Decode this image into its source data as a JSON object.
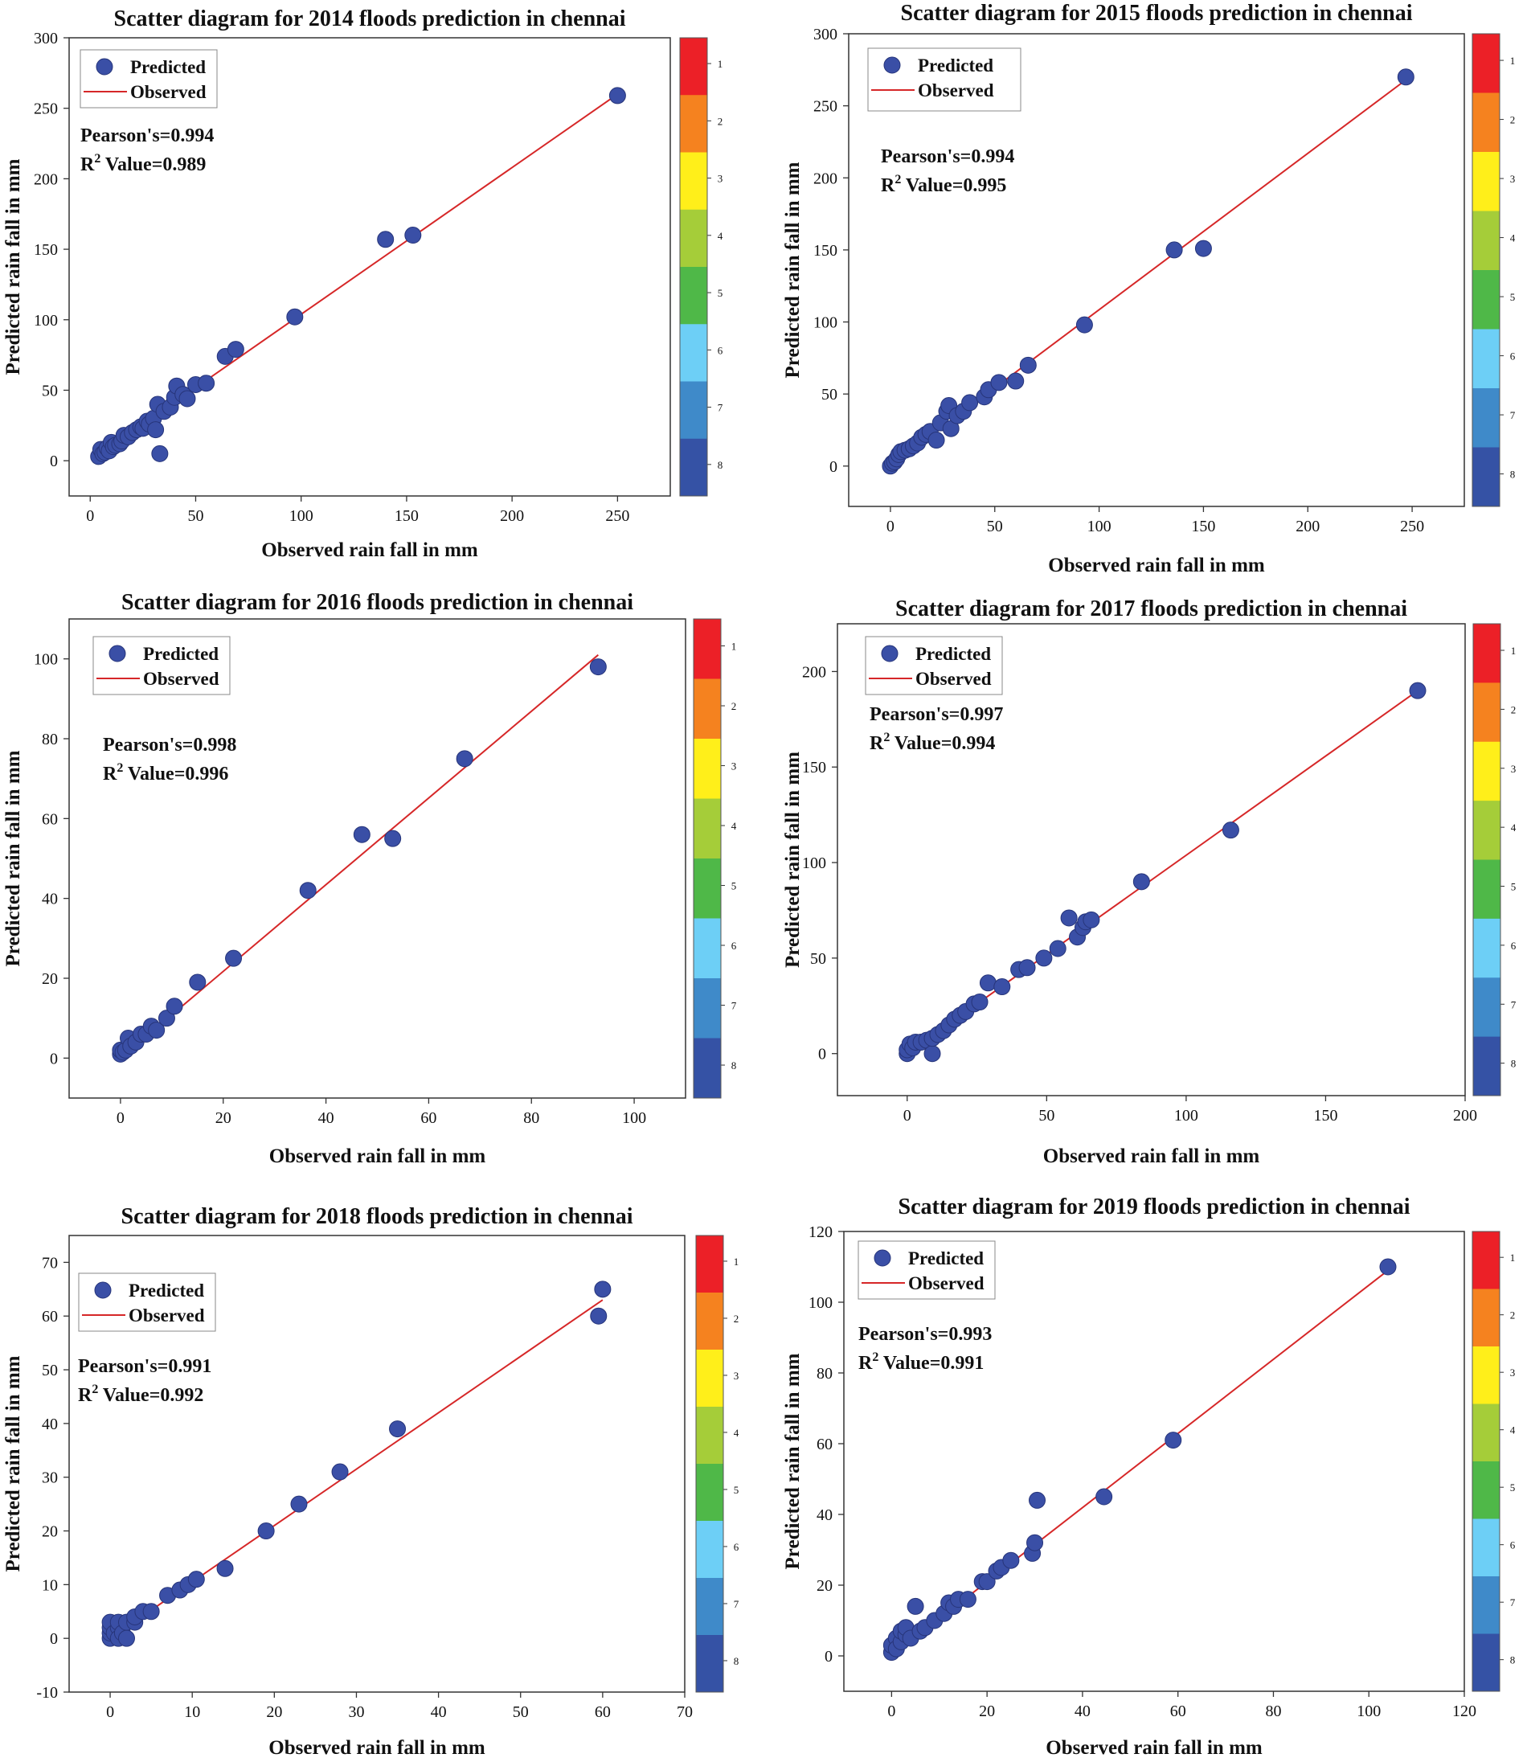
{
  "chart_data": [
    {
      "type": "scatter",
      "title": "Scatter diagram for 2014 floods prediction in chennai",
      "xlabel": "Observed rain fall in mm",
      "ylabel": "Predicted rain fall in mm",
      "xlim": [
        -10,
        275
      ],
      "ylim": [
        -25,
        300
      ],
      "xticks": [
        0,
        50,
        100,
        150,
        200,
        250
      ],
      "yticks": [
        0,
        50,
        100,
        150,
        200,
        250,
        300
      ],
      "legend": {
        "predicted": "Predicted",
        "observed": "Observed",
        "placement": "top-left"
      },
      "pearson": "Pearson's=0.994",
      "r2": {
        "base": "R",
        "sup": "2",
        "rest": " Value=0.989"
      },
      "line": {
        "x": [
          5,
          250
        ],
        "y": [
          5,
          260
        ]
      },
      "points": [
        [
          4,
          3
        ],
        [
          5,
          8
        ],
        [
          6,
          5
        ],
        [
          7,
          6
        ],
        [
          8,
          9
        ],
        [
          9,
          7
        ],
        [
          10,
          13
        ],
        [
          11,
          10
        ],
        [
          12,
          11
        ],
        [
          14,
          12
        ],
        [
          15,
          14
        ],
        [
          16,
          18
        ],
        [
          18,
          17
        ],
        [
          20,
          20
        ],
        [
          22,
          22
        ],
        [
          24,
          24
        ],
        [
          25,
          23
        ],
        [
          27,
          28
        ],
        [
          28,
          26
        ],
        [
          30,
          30
        ],
        [
          31,
          22
        ],
        [
          32,
          40
        ],
        [
          33,
          5
        ],
        [
          35,
          35
        ],
        [
          38,
          38
        ],
        [
          40,
          45
        ],
        [
          41,
          53
        ],
        [
          44,
          47
        ],
        [
          46,
          44
        ],
        [
          50,
          54
        ],
        [
          55,
          55
        ],
        [
          64,
          74
        ],
        [
          69,
          79
        ],
        [
          97,
          102
        ],
        [
          140,
          157
        ],
        [
          153,
          160
        ],
        [
          250,
          259
        ]
      ],
      "colorbar": {
        "labels": [
          "1",
          "2",
          "3",
          "4",
          "5",
          "6",
          "7",
          "8"
        ],
        "colors": [
          "#ec2027",
          "#f5821f",
          "#ffef1a",
          "#a5cd39",
          "#4fb848",
          "#6dcff6",
          "#3f8ac9",
          "#3552a5"
        ]
      }
    },
    {
      "type": "scatter",
      "title": "Scatter diagram for 2015 floods prediction in chennai",
      "xlabel": "Observed rain fall in mm",
      "ylabel": "Predicted rain fall in mm",
      "xlim": [
        -20,
        275
      ],
      "ylim": [
        -28,
        300
      ],
      "xticks": [
        0,
        50,
        100,
        150,
        200,
        250
      ],
      "yticks": [
        0,
        50,
        100,
        150,
        200,
        250,
        300
      ],
      "legend": {
        "predicted": "Predicted",
        "observed": "Observed",
        "placement": "top-left"
      },
      "pearson": "Pearson's=0.994",
      "r2": {
        "base": "R",
        "sup": "2",
        "rest": " Value=0.995"
      },
      "line": {
        "x": [
          0,
          247
        ],
        "y": [
          0,
          268
        ]
      },
      "points": [
        [
          0,
          0
        ],
        [
          1,
          2
        ],
        [
          2,
          3
        ],
        [
          3,
          5
        ],
        [
          4,
          8
        ],
        [
          5,
          10
        ],
        [
          7,
          11
        ],
        [
          9,
          12
        ],
        [
          11,
          14
        ],
        [
          13,
          16
        ],
        [
          15,
          20
        ],
        [
          17,
          22
        ],
        [
          19,
          24
        ],
        [
          22,
          18
        ],
        [
          24,
          30
        ],
        [
          27,
          38
        ],
        [
          28,
          42
        ],
        [
          29,
          26
        ],
        [
          32,
          35
        ],
        [
          35,
          38
        ],
        [
          38,
          44
        ],
        [
          45,
          48
        ],
        [
          47,
          53
        ],
        [
          52,
          58
        ],
        [
          60,
          59
        ],
        [
          66,
          70
        ],
        [
          93,
          98
        ],
        [
          136,
          150
        ],
        [
          150,
          151
        ],
        [
          247,
          270
        ]
      ],
      "colorbar": {
        "labels": [
          "1",
          "2",
          "3",
          "4",
          "5",
          "6",
          "7",
          "8"
        ],
        "colors": [
          "#ec2027",
          "#f5821f",
          "#ffef1a",
          "#a5cd39",
          "#4fb848",
          "#6dcff6",
          "#3f8ac9",
          "#3552a5"
        ]
      }
    },
    {
      "type": "scatter",
      "title": "Scatter diagram for 2016 floods prediction in chennai",
      "xlabel": "Observed rain fall in mm",
      "ylabel": "Predicted rain fall in mm",
      "xlim": [
        -10,
        110
      ],
      "ylim": [
        -10,
        110
      ],
      "xticks": [
        0,
        20,
        40,
        60,
        80,
        100
      ],
      "yticks": [
        0,
        20,
        40,
        60,
        80,
        100
      ],
      "legend": {
        "predicted": "Predicted",
        "observed": "Observed",
        "placement": "top-left"
      },
      "pearson": "Pearson's=0.998",
      "r2": {
        "base": "R",
        "sup": "2",
        "rest": " Value=0.996"
      },
      "line": {
        "x": [
          0,
          93
        ],
        "y": [
          0,
          101
        ]
      },
      "points": [
        [
          0,
          1
        ],
        [
          0,
          2
        ],
        [
          0.5,
          1.5
        ],
        [
          1,
          2
        ],
        [
          1.5,
          5
        ],
        [
          2,
          3
        ],
        [
          3,
          4
        ],
        [
          4,
          6
        ],
        [
          5,
          6
        ],
        [
          6,
          8
        ],
        [
          7,
          7
        ],
        [
          9,
          10
        ],
        [
          10.5,
          13
        ],
        [
          15,
          19
        ],
        [
          22,
          25
        ],
        [
          36.5,
          42
        ],
        [
          47,
          56
        ],
        [
          53,
          55
        ],
        [
          67,
          75
        ],
        [
          93,
          98
        ]
      ],
      "colorbar": {
        "labels": [
          "1",
          "2",
          "3",
          "4",
          "5",
          "6",
          "7",
          "8"
        ],
        "colors": [
          "#ec2027",
          "#f5821f",
          "#ffef1a",
          "#a5cd39",
          "#4fb848",
          "#6dcff6",
          "#3f8ac9",
          "#3552a5"
        ]
      }
    },
    {
      "type": "scatter",
      "title": "Scatter diagram for 2017 floods prediction in chennai",
      "xlabel": "Observed rain fall in mm",
      "ylabel": "Predicted rain fall in mm",
      "xlim": [
        -25,
        200
      ],
      "ylim": [
        -22,
        225
      ],
      "xticks": [
        0,
        50,
        100,
        150,
        200
      ],
      "yticks": [
        0,
        50,
        100,
        150,
        200
      ],
      "legend": {
        "predicted": "Predicted",
        "observed": "Observed",
        "placement": "top-left"
      },
      "pearson": "Pearson's=0.997",
      "r2": {
        "base": "R",
        "sup": "2",
        "rest": " Value=0.994"
      },
      "line": {
        "x": [
          0,
          183
        ],
        "y": [
          0,
          190
        ]
      },
      "points": [
        [
          0,
          0
        ],
        [
          0,
          2
        ],
        [
          1,
          5
        ],
        [
          2,
          3
        ],
        [
          3,
          6
        ],
        [
          5,
          6
        ],
        [
          7,
          7
        ],
        [
          9,
          0
        ],
        [
          9,
          8
        ],
        [
          11,
          10
        ],
        [
          13,
          12
        ],
        [
          15,
          15
        ],
        [
          17,
          18
        ],
        [
          19,
          20
        ],
        [
          21,
          22
        ],
        [
          24,
          26
        ],
        [
          26,
          27
        ],
        [
          29,
          37
        ],
        [
          34,
          35
        ],
        [
          40,
          44
        ],
        [
          43,
          45
        ],
        [
          49,
          50
        ],
        [
          54,
          55
        ],
        [
          58,
          71
        ],
        [
          61,
          61
        ],
        [
          63,
          66
        ],
        [
          64,
          69
        ],
        [
          66,
          70
        ],
        [
          84,
          90
        ],
        [
          116,
          117
        ],
        [
          183,
          190
        ]
      ],
      "colorbar": {
        "labels": [
          "1",
          "2",
          "3",
          "4",
          "5",
          "6",
          "7",
          "8"
        ],
        "colors": [
          "#ec2027",
          "#f5821f",
          "#ffef1a",
          "#a5cd39",
          "#4fb848",
          "#6dcff6",
          "#3f8ac9",
          "#3552a5"
        ]
      }
    },
    {
      "type": "scatter",
      "title": "Scatter diagram for 2018 floods prediction in chennai",
      "xlabel": "Observed rain fall in mm",
      "ylabel": "Predicted rain fall in mm",
      "xlim": [
        -5,
        70
      ],
      "ylim": [
        -10,
        75
      ],
      "xticks": [
        0,
        10,
        20,
        30,
        40,
        50,
        60,
        70
      ],
      "yticks": [
        -10,
        0,
        10,
        20,
        30,
        40,
        50,
        60,
        70
      ],
      "legend": {
        "predicted": "Predicted",
        "observed": "Observed",
        "placement": "top-left"
      },
      "pearson": "Pearson's=0.991",
      "r2": {
        "base": "R",
        "sup": "2",
        "rest": " Value=0.992"
      },
      "line": {
        "x": [
          0,
          60
        ],
        "y": [
          0,
          63
        ]
      },
      "points": [
        [
          0,
          0
        ],
        [
          0,
          1
        ],
        [
          0,
          2
        ],
        [
          0,
          3
        ],
        [
          0.5,
          1
        ],
        [
          1,
          2
        ],
        [
          1,
          3
        ],
        [
          1,
          0
        ],
        [
          1.5,
          1
        ],
        [
          2,
          0
        ],
        [
          2,
          3
        ],
        [
          3,
          3
        ],
        [
          3,
          4
        ],
        [
          4,
          5
        ],
        [
          5,
          5
        ],
        [
          7,
          8
        ],
        [
          8.5,
          9
        ],
        [
          9.5,
          10
        ],
        [
          10.5,
          11
        ],
        [
          14,
          13
        ],
        [
          19,
          20
        ],
        [
          23,
          25
        ],
        [
          28,
          31
        ],
        [
          35,
          39
        ],
        [
          59.5,
          60
        ],
        [
          60,
          65
        ]
      ],
      "colorbar": {
        "labels": [
          "1",
          "2",
          "3",
          "4",
          "5",
          "6",
          "7",
          "8"
        ],
        "colors": [
          "#ec2027",
          "#f5821f",
          "#ffef1a",
          "#a5cd39",
          "#4fb848",
          "#6dcff6",
          "#3f8ac9",
          "#3552a5"
        ]
      }
    },
    {
      "type": "scatter",
      "title": "Scatter diagram for 2019 floods prediction in chennai",
      "xlabel": "Observed rain fall in mm",
      "ylabel": "Predicted rain fall in mm",
      "xlim": [
        -10,
        120
      ],
      "ylim": [
        -10,
        120
      ],
      "xticks": [
        0,
        20,
        40,
        60,
        80,
        100,
        120
      ],
      "yticks": [
        0,
        20,
        40,
        60,
        80,
        100,
        120
      ],
      "legend": {
        "predicted": "Predicted",
        "observed": "Observed",
        "placement": "top-left"
      },
      "pearson": "Pearson's=0.993",
      "r2": {
        "base": "R",
        "sup": "2",
        "rest": " Value=0.991"
      },
      "line": {
        "x": [
          0,
          104
        ],
        "y": [
          0,
          109
        ]
      },
      "points": [
        [
          0,
          1
        ],
        [
          0,
          3
        ],
        [
          1,
          5
        ],
        [
          1,
          2
        ],
        [
          2,
          4
        ],
        [
          2,
          7
        ],
        [
          3,
          6
        ],
        [
          3,
          8
        ],
        [
          4,
          5
        ],
        [
          5,
          14
        ],
        [
          6,
          7
        ],
        [
          7,
          8
        ],
        [
          9,
          10
        ],
        [
          11,
          12
        ],
        [
          12,
          15
        ],
        [
          13,
          14
        ],
        [
          14,
          16
        ],
        [
          16,
          16
        ],
        [
          19,
          21
        ],
        [
          20,
          21
        ],
        [
          22,
          24
        ],
        [
          23,
          25
        ],
        [
          25,
          27
        ],
        [
          29.5,
          29
        ],
        [
          30,
          32
        ],
        [
          30.5,
          44
        ],
        [
          44.5,
          45
        ],
        [
          59,
          61
        ],
        [
          104,
          110
        ]
      ],
      "colorbar": {
        "labels": [
          "1",
          "2",
          "3",
          "4",
          "5",
          "6",
          "7",
          "8"
        ],
        "colors": [
          "#ec2027",
          "#f5821f",
          "#ffef1a",
          "#a5cd39",
          "#4fb848",
          "#6dcff6",
          "#3f8ac9",
          "#3552a5"
        ]
      }
    }
  ]
}
